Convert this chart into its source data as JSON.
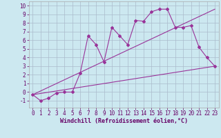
{
  "xlabel": "Windchill (Refroidissement éolien,°C)",
  "bg_color": "#cce8f0",
  "grid_color": "#aabbcc",
  "line_color": "#993399",
  "xlim": [
    -0.5,
    23.5
  ],
  "ylim": [
    -1.8,
    10.5
  ],
  "xticks": [
    0,
    1,
    2,
    3,
    4,
    5,
    6,
    7,
    8,
    9,
    10,
    11,
    12,
    13,
    14,
    15,
    16,
    17,
    18,
    19,
    20,
    21,
    22,
    23
  ],
  "yticks": [
    -1,
    0,
    1,
    2,
    3,
    4,
    5,
    6,
    7,
    8,
    9,
    10
  ],
  "line1_x": [
    0,
    1,
    2,
    3,
    4,
    5,
    6,
    7,
    8,
    9,
    10,
    11,
    12,
    13,
    14,
    15,
    16,
    17,
    18,
    19,
    20,
    21,
    22,
    23
  ],
  "line1_y": [
    -0.3,
    -1.0,
    -0.7,
    -0.1,
    0.0,
    0.0,
    2.2,
    6.5,
    5.5,
    3.5,
    7.5,
    6.5,
    5.5,
    8.3,
    8.2,
    9.3,
    9.6,
    9.6,
    7.5,
    7.5,
    7.7,
    5.2,
    4.0,
    3.0
  ],
  "line2_x": [
    0,
    23
  ],
  "line2_y": [
    -0.3,
    3.0
  ],
  "line3_x": [
    0,
    23
  ],
  "line3_y": [
    -0.3,
    9.6
  ],
  "tick_fontsize": 5.5,
  "xlabel_fontsize": 6.0
}
